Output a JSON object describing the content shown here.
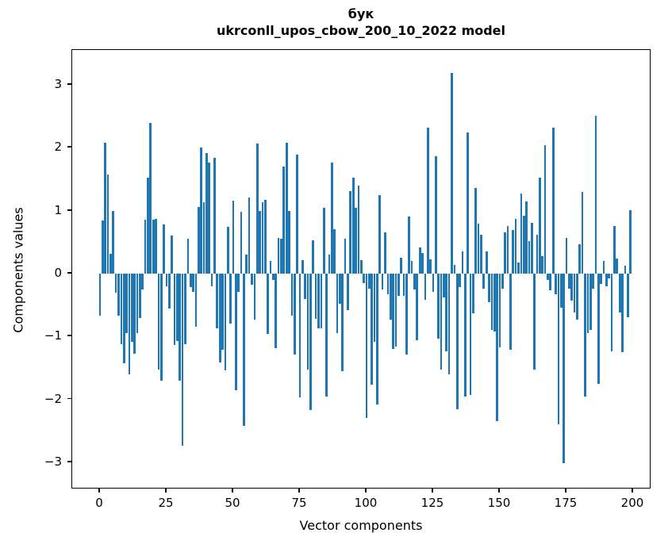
{
  "title": {
    "line1": "бук",
    "line2": "ukrconll_upos_cbow_200_10_2022 model"
  },
  "chart_data": {
    "type": "bar",
    "title": "бук — ukrconll_upos_cbow_200_10_2022 model",
    "xlabel": "Vector components",
    "ylabel": "Components values",
    "bar_color": "#1f77b4",
    "grid": false,
    "legend": null,
    "x_ticks": [
      0,
      25,
      50,
      75,
      100,
      125,
      150,
      175,
      200
    ],
    "y_ticks": [
      3,
      2,
      1,
      0,
      -1,
      -2,
      -3
    ],
    "xlim": [
      -10.4,
      206.9
    ],
    "ylim": [
      -3.43,
      3.56
    ],
    "x_start_index": 0,
    "values": [
      -0.67,
      0.85,
      2.08,
      1.58,
      0.32,
      1.0,
      -0.3,
      -0.67,
      -1.12,
      -1.43,
      -0.95,
      -1.6,
      -1.08,
      -1.27,
      -0.95,
      -0.7,
      -0.25,
      0.86,
      1.52,
      2.39,
      0.86,
      0.87,
      -1.53,
      -1.7,
      0.78,
      -0.2,
      -0.56,
      0.61,
      -1.14,
      -1.07,
      -1.7,
      -2.73,
      -1.12,
      0.55,
      -0.22,
      -0.29,
      -0.85,
      1.06,
      2.0,
      1.13,
      1.91,
      1.76,
      -0.2,
      1.84,
      -0.87,
      -1.41,
      -1.21,
      -1.54,
      0.74,
      -0.8,
      1.16,
      -1.85,
      -0.29,
      0.98,
      -2.42,
      0.3,
      1.21,
      -0.18,
      -0.73,
      2.07,
      0.99,
      1.13,
      1.17,
      -0.96,
      0.2,
      -0.1,
      -1.19,
      0.57,
      0.55,
      1.7,
      2.08,
      1.0,
      -0.67,
      -1.28,
      1.89,
      -1.97,
      0.22,
      -0.4,
      -1.52,
      -2.17,
      0.53,
      -0.72,
      -0.87,
      -0.87,
      1.04,
      -1.95,
      0.3,
      1.76,
      0.7,
      -0.94,
      -0.48,
      -1.55,
      0.56,
      -0.58,
      1.31,
      1.53,
      1.05,
      1.4,
      0.22,
      -0.15,
      -2.29,
      -0.24,
      -1.76,
      -1.09,
      -2.08,
      1.25,
      -0.25,
      0.66,
      -0.33,
      -0.73,
      -1.2,
      -1.16,
      -0.35,
      0.25,
      -0.35,
      -1.29,
      0.91,
      0.2,
      -0.25,
      -1.06,
      0.42,
      0.33,
      -0.42,
      2.32,
      0.23,
      -0.29,
      1.87,
      -1.03,
      -1.52,
      -0.38,
      -1.23,
      -1.6,
      3.19,
      0.14,
      -2.15,
      -0.22,
      0.35,
      -1.95,
      2.25,
      -1.93,
      -0.63,
      1.36,
      0.79,
      0.62,
      -0.24,
      0.35,
      -0.45,
      -0.9,
      -0.92,
      -2.35,
      -1.17,
      -0.24,
      0.65,
      0.76,
      -1.21,
      0.69,
      0.87,
      0.18,
      1.27,
      0.92,
      1.15,
      0.52,
      0.81,
      -1.52,
      0.62,
      1.53,
      0.28,
      2.04,
      -0.1,
      -0.26,
      2.32,
      -0.33,
      -2.4,
      -0.54,
      -3.01,
      0.57,
      -0.24,
      -0.43,
      -0.62,
      -0.73,
      0.47,
      1.3,
      -1.95,
      -0.94,
      -0.9,
      -0.24,
      2.51,
      -1.75,
      -0.16,
      0.2,
      -0.2,
      -0.08,
      -1.23,
      0.76,
      0.24,
      -0.62,
      -1.25,
      0.13,
      -0.69,
      1.01
    ]
  }
}
